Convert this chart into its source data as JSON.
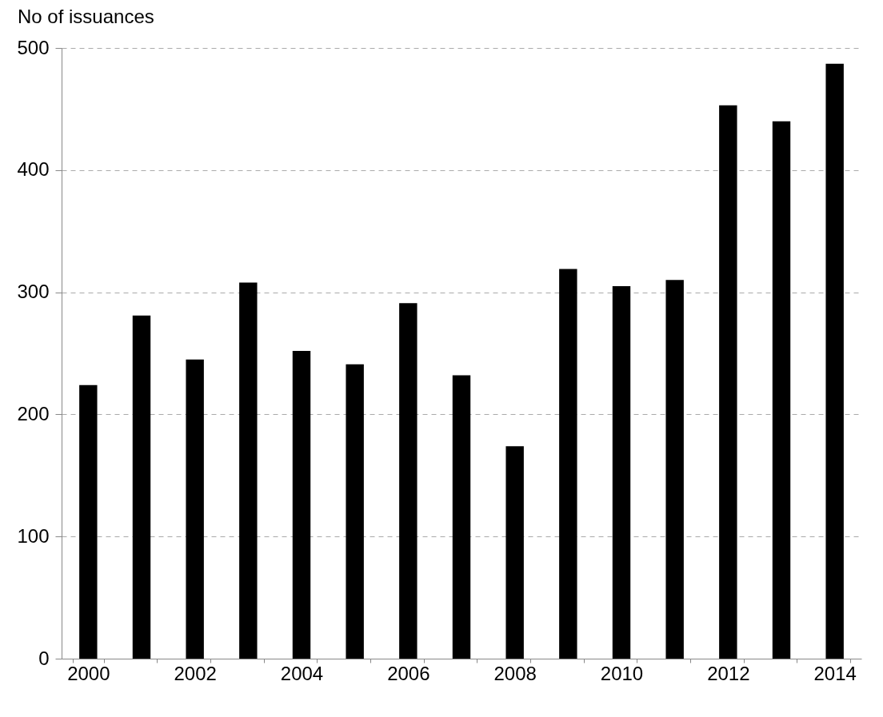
{
  "chart_data": {
    "type": "bar",
    "ylabel": "No of issuances",
    "categories": [
      "2000",
      null,
      "2002",
      null,
      "2004",
      null,
      "2006",
      null,
      "2008",
      null,
      "2010",
      null,
      "2012",
      null,
      "2014"
    ],
    "values": [
      224,
      281,
      245,
      308,
      252,
      241,
      291,
      232,
      174,
      319,
      305,
      310,
      453,
      440,
      487
    ],
    "color": "#000000",
    "ylim": [
      0,
      500
    ],
    "yticks": [
      0,
      100,
      200,
      300,
      400,
      500
    ],
    "grid": "y"
  }
}
